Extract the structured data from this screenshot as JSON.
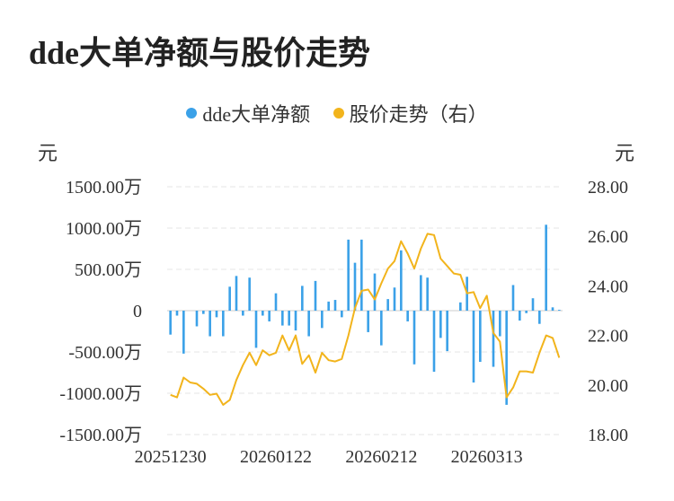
{
  "colors": {
    "bar": "#3ba1e8",
    "line": "#f2b41c",
    "grid": "#e6e6e6"
  },
  "chart_data": {
    "type": "bar",
    "title": "dde大单净额与股价走势",
    "legend": {
      "position": "top-center",
      "entries": [
        "dde大单净额",
        "股价走势（右）"
      ]
    },
    "left_axis": {
      "unit": "元",
      "ticks": [
        1500,
        1000,
        500,
        0,
        -500,
        -1000,
        -1500
      ],
      "tick_labels": [
        "1500.00万",
        "1000.00万",
        "500.00万",
        "0",
        "-500.00万",
        "-1000.00万",
        "-1500.00万"
      ],
      "ylim": [
        -1500,
        1500
      ]
    },
    "right_axis": {
      "unit": "元",
      "ticks": [
        28,
        26,
        24,
        22,
        20,
        18
      ],
      "tick_labels": [
        "28.00",
        "26.00",
        "24.00",
        "22.00",
        "20.00",
        "18.00"
      ],
      "ylim": [
        18,
        28
      ]
    },
    "x_tick_labels": [
      "20251230",
      "20260122",
      "20260212",
      "20260313"
    ],
    "x_tick_indices": [
      0,
      16,
      32,
      48
    ],
    "grid": true,
    "series": [
      {
        "name": "dde大单净额",
        "type": "bar",
        "axis": "left",
        "values": [
          -290,
          -60,
          -520,
          0,
          -190,
          -40,
          -310,
          -80,
          -310,
          290,
          420,
          -60,
          400,
          -450,
          -60,
          -130,
          210,
          -180,
          -180,
          -240,
          300,
          -310,
          360,
          -210,
          110,
          130,
          -80,
          860,
          580,
          860,
          -260,
          450,
          -420,
          140,
          280,
          730,
          -130,
          -650,
          430,
          400,
          -740,
          -330,
          -490,
          0,
          100,
          410,
          -870,
          -620,
          0,
          -680,
          -310,
          -1140,
          310,
          -120,
          -30,
          150,
          -160,
          1040,
          40,
          10
        ]
      },
      {
        "name": "股价走势（右）",
        "type": "line",
        "axis": "right",
        "values": [
          19.6,
          19.5,
          20.3,
          20.1,
          20.05,
          19.85,
          19.6,
          19.65,
          19.2,
          19.4,
          20.2,
          20.8,
          21.3,
          20.8,
          21.4,
          21.2,
          21.3,
          22.0,
          21.4,
          22.0,
          20.85,
          21.2,
          20.5,
          21.3,
          21.0,
          20.95,
          21.05,
          22.0,
          23.1,
          23.8,
          23.85,
          23.45,
          24.1,
          24.7,
          25.0,
          25.8,
          25.3,
          24.7,
          25.5,
          26.1,
          26.05,
          25.1,
          24.8,
          24.5,
          24.45,
          23.7,
          23.75,
          23.1,
          23.6,
          22.1,
          21.75,
          19.5,
          19.9,
          20.55,
          20.55,
          20.5,
          21.3,
          22.0,
          21.9,
          21.1
        ]
      }
    ]
  }
}
